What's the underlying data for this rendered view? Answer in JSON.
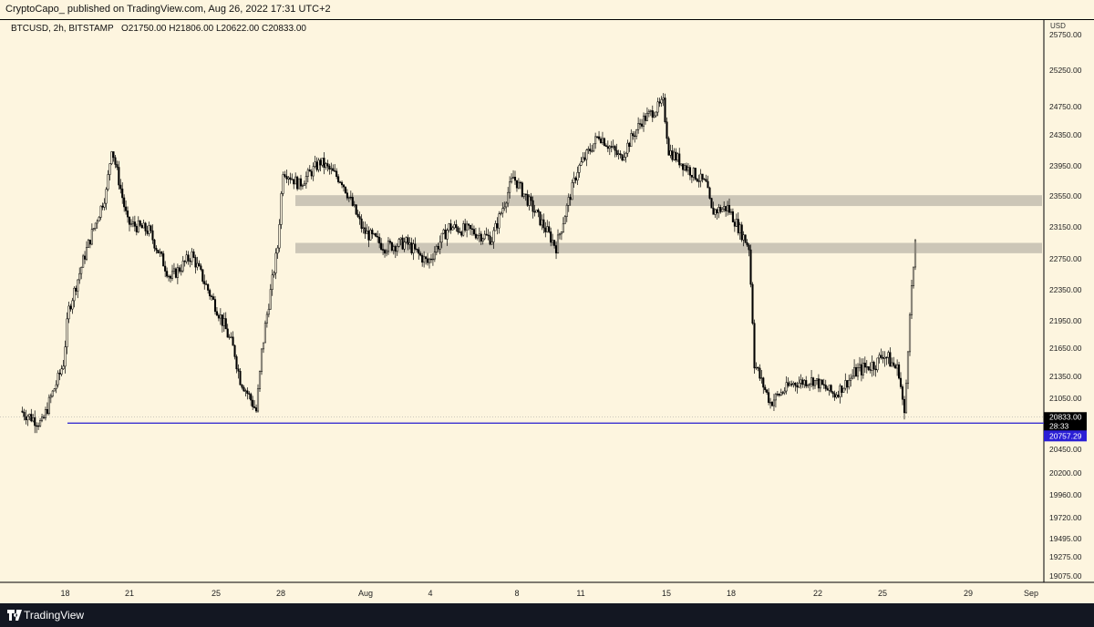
{
  "header": {
    "published": "CryptoCapo_ published on TradingView.com, Aug 26, 2022 17:31 UTC+2"
  },
  "footer": {
    "brand": "TradingView"
  },
  "chart_data": {
    "type": "candlestick",
    "symbol_line": "BTCUSD, 2h, BITSTAMP",
    "ohlc_label": "O21750.00  H21806.00  L20622.00  C20833.00",
    "currency": "USD",
    "y_ticks": [
      "25750.00",
      "25250.00",
      "24750.00",
      "24350.00",
      "23950.00",
      "23550.00",
      "23150.00",
      "22750.00",
      "22350.00",
      "21950.00",
      "21650.00",
      "21350.00",
      "21050.00",
      "20450.00",
      "20200.00",
      "19960.00",
      "19720.00",
      "19495.00",
      "19275.00",
      "19075.00"
    ],
    "x_ticks": [
      "18",
      "21",
      "25",
      "28",
      "Aug",
      "4",
      "8",
      "11",
      "15",
      "18",
      "22",
      "25",
      "29",
      "Sep"
    ],
    "last_price": "20833.00",
    "countdown": "28:33",
    "support_level": "20757.29",
    "support_value": 20757.29,
    "resistance_zones": [
      {
        "low": 23420,
        "high": 23560
      },
      {
        "low": 22820,
        "high": 22950
      }
    ],
    "ylim": [
      18950,
      25900
    ],
    "series_path": [
      [
        "2022-07-16",
        20900
      ],
      [
        "2022-07-17",
        20750
      ],
      [
        "2022-07-18",
        21500
      ],
      [
        "2022-07-18",
        22100
      ],
      [
        "2022-07-19",
        22800
      ],
      [
        "2022-07-20",
        23600
      ],
      [
        "2022-07-20",
        24200
      ],
      [
        "2022-07-21",
        23200
      ],
      [
        "2022-07-22",
        23100
      ],
      [
        "2022-07-23",
        22500
      ],
      [
        "2022-07-24",
        22800
      ],
      [
        "2022-07-25",
        22200
      ],
      [
        "2022-07-26",
        21600
      ],
      [
        "2022-07-26",
        21300
      ],
      [
        "2022-07-27",
        20900
      ],
      [
        "2022-07-27",
        21600
      ],
      [
        "2022-07-28",
        22900
      ],
      [
        "2022-07-28",
        23900
      ],
      [
        "2022-07-29",
        23700
      ],
      [
        "2022-07-30",
        24000
      ],
      [
        "2022-07-31",
        23750
      ],
      [
        "2022-08-01",
        23100
      ],
      [
        "2022-08-02",
        22900
      ],
      [
        "2022-08-03",
        22950
      ],
      [
        "2022-08-04",
        22700
      ],
      [
        "2022-08-05",
        23150
      ],
      [
        "2022-08-06",
        23100
      ],
      [
        "2022-08-07",
        23000
      ],
      [
        "2022-08-08",
        23800
      ],
      [
        "2022-08-09",
        23350
      ],
      [
        "2022-08-10",
        22900
      ],
      [
        "2022-08-11",
        23900
      ],
      [
        "2022-08-12",
        24350
      ],
      [
        "2022-08-13",
        24050
      ],
      [
        "2022-08-14",
        24550
      ],
      [
        "2022-08-15",
        24800
      ],
      [
        "2022-08-15",
        24150
      ],
      [
        "2022-08-16",
        23950
      ],
      [
        "2022-08-17",
        23700
      ],
      [
        "2022-08-17",
        23350
      ],
      [
        "2022-08-18",
        23400
      ],
      [
        "2022-08-19",
        22900
      ],
      [
        "2022-08-19",
        21500
      ],
      [
        "2022-08-20",
        21000
      ],
      [
        "2022-08-21",
        21250
      ],
      [
        "2022-08-22",
        21300
      ],
      [
        "2022-08-23",
        21100
      ],
      [
        "2022-08-24",
        21400
      ],
      [
        "2022-08-25",
        21500
      ],
      [
        "2022-08-25",
        21600
      ],
      [
        "2022-08-26",
        21400
      ],
      [
        "2022-08-26",
        20833
      ],
      [
        "2022-08-26",
        22100
      ],
      [
        "2022-08-26",
        22900
      ]
    ]
  }
}
